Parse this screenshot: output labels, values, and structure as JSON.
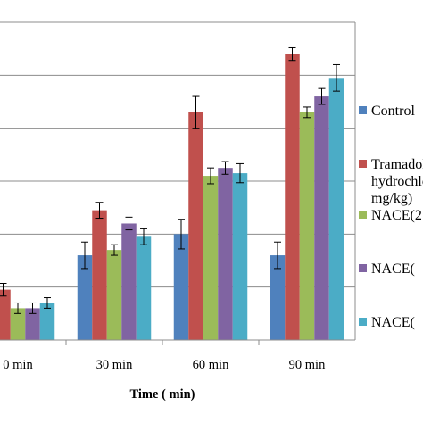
{
  "chart_data": {
    "type": "bar",
    "xlabel": "Time ( min)",
    "ylabel": "",
    "title": "",
    "categories": [
      "0 min",
      "30 min",
      "60 min",
      "90 min"
    ],
    "ylim": [
      0,
      6
    ],
    "grid": true,
    "legend_position": "right",
    "series": [
      {
        "name": "Control",
        "color": "#4f81bd",
        "values": [
          0.5,
          1.6,
          2.0,
          1.6
        ],
        "errors": [
          0.15,
          0.25,
          0.28,
          0.25
        ]
      },
      {
        "name": "Tramadol hydrochloride mg/kg)",
        "color": "#c0504d",
        "values": [
          0.95,
          2.45,
          4.3,
          5.4
        ],
        "errors": [
          0.12,
          0.15,
          0.3,
          0.12
        ]
      },
      {
        "name": "NACE(2",
        "color": "#9bbb59",
        "values": [
          0.6,
          1.7,
          3.1,
          4.3
        ],
        "errors": [
          0.1,
          0.1,
          0.15,
          0.1
        ]
      },
      {
        "name": "NACE(",
        "color": "#8064a2",
        "values": [
          0.6,
          2.2,
          3.25,
          4.6
        ],
        "errors": [
          0.1,
          0.12,
          0.12,
          0.15
        ]
      },
      {
        "name": "NACE(",
        "color": "#4bacc6",
        "values": [
          0.7,
          1.95,
          3.15,
          4.95
        ],
        "errors": [
          0.1,
          0.15,
          0.18,
          0.25
        ]
      }
    ]
  }
}
